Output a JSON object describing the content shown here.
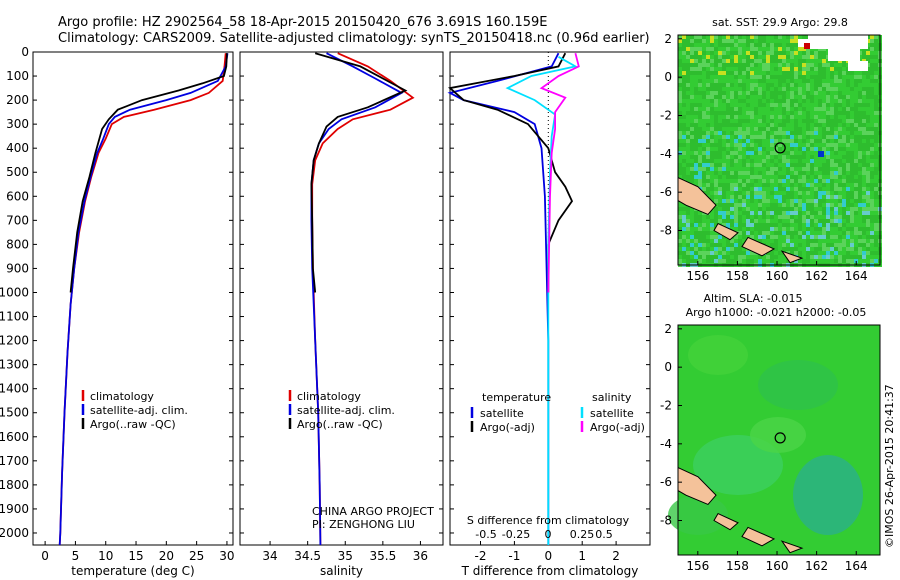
{
  "header": {
    "line1": "Argo profile: HZ 2902564_58 18-Apr-2015 20150420_676 3.691S 160.159E",
    "line2": "Climatology: CARS2009. Satellite-adjusted climatology: synTS_20150418.nc (0.96d earlier)"
  },
  "colors": {
    "climatology": "#e00000",
    "satellite": "#0000e0",
    "argo": "#000000",
    "sat_salinity": "#00e0ff",
    "argo_salinity": "#ff00ff",
    "land": "#f4c29a",
    "ocean": "#33cc33"
  },
  "chart_data": [
    {
      "type": "line",
      "panel": "temperature",
      "xlabel": "temperature (deg C)",
      "ylabel": "",
      "xlim": [
        -2,
        31
      ],
      "ylim": [
        2050,
        0
      ],
      "x_ticks": [
        0,
        5,
        10,
        15,
        20,
        25,
        30
      ],
      "x_tick_labels": [
        "0",
        "5",
        "10",
        "15",
        "20",
        "25",
        "30"
      ],
      "y_ticks": [
        0,
        100,
        200,
        300,
        400,
        500,
        600,
        700,
        800,
        900,
        1000,
        1100,
        1200,
        1300,
        1400,
        1500,
        1600,
        1700,
        1800,
        1900,
        2000
      ],
      "y_tick_labels": [
        "0",
        "100",
        "200",
        "300",
        "400",
        "500",
        "600",
        "700",
        "800",
        "900",
        "1000",
        "1100",
        "1200",
        "1300",
        "1400",
        "1500",
        "1600",
        "1700",
        "1800",
        "1900",
        "2000"
      ],
      "legend": [
        "climatology",
        "satellite-adj. clim.",
        "Argo(..raw -QC)"
      ],
      "series": [
        {
          "name": "climatology",
          "points": [
            [
              29.8,
              5
            ],
            [
              29.6,
              60
            ],
            [
              29.3,
              120
            ],
            [
              27,
              170
            ],
            [
              24,
              200
            ],
            [
              18,
              240
            ],
            [
              13,
              270
            ],
            [
              11,
              300
            ],
            [
              10,
              360
            ],
            [
              8.8,
              420
            ],
            [
              7.6,
              520
            ],
            [
              6.6,
              620
            ],
            [
              5.6,
              750
            ],
            [
              4.8,
              900
            ],
            [
              4.2,
              1050
            ],
            [
              3.7,
              1250
            ],
            [
              3.2,
              1500
            ],
            [
              2.8,
              1750
            ],
            [
              2.5,
              2000
            ],
            [
              2.4,
              2050
            ]
          ]
        },
        {
          "name": "satellite-adj. clim.",
          "points": [
            [
              30.1,
              5
            ],
            [
              29.8,
              60
            ],
            [
              28.5,
              120
            ],
            [
              24,
              170
            ],
            [
              20,
              200
            ],
            [
              14,
              240
            ],
            [
              11.5,
              270
            ],
            [
              10.5,
              300
            ],
            [
              9.6,
              360
            ],
            [
              8.6,
              420
            ],
            [
              7.5,
              520
            ],
            [
              6.5,
              620
            ],
            [
              5.5,
              750
            ],
            [
              4.8,
              900
            ],
            [
              4.2,
              1050
            ],
            [
              3.7,
              1250
            ],
            [
              3.2,
              1500
            ],
            [
              2.8,
              1750
            ],
            [
              2.5,
              2000
            ],
            [
              2.4,
              2050
            ]
          ]
        },
        {
          "name": "Argo(..raw -QC)",
          "points": [
            [
              30.0,
              5
            ],
            [
              29.9,
              60
            ],
            [
              29.5,
              100
            ],
            [
              26,
              130
            ],
            [
              22,
              160
            ],
            [
              16,
              200
            ],
            [
              12,
              240
            ],
            [
              10.5,
              280
            ],
            [
              9.4,
              320
            ],
            [
              8.3,
              420
            ],
            [
              7.3,
              520
            ],
            [
              6.2,
              620
            ],
            [
              5.3,
              750
            ],
            [
              4.6,
              900
            ],
            [
              4.2,
              1000
            ]
          ]
        }
      ]
    },
    {
      "type": "line",
      "panel": "salinity",
      "xlabel": "salinity",
      "xlim": [
        33.6,
        36.3
      ],
      "ylim": [
        2050,
        0
      ],
      "x_ticks": [
        34,
        34.5,
        35,
        35.5,
        36
      ],
      "x_tick_labels": [
        "34",
        "34.5",
        "35",
        "35.5",
        "36"
      ],
      "legend": [
        "climatology",
        "satellite-adj. clim.",
        "Argo(..raw -QC)"
      ],
      "annotation": [
        "CHINA ARGO PROJECT",
        "PI: ZENGHONG LIU"
      ],
      "series": [
        {
          "name": "climatology",
          "points": [
            [
              34.9,
              5
            ],
            [
              35.3,
              60
            ],
            [
              35.6,
              120
            ],
            [
              35.9,
              190
            ],
            [
              35.6,
              240
            ],
            [
              35.1,
              280
            ],
            [
              34.9,
              320
            ],
            [
              34.7,
              380
            ],
            [
              34.6,
              450
            ],
            [
              34.56,
              550
            ],
            [
              34.56,
              700
            ],
            [
              34.57,
              900
            ],
            [
              34.6,
              1200
            ],
            [
              34.64,
              1500
            ],
            [
              34.66,
              1800
            ],
            [
              34.67,
              2050
            ]
          ]
        },
        {
          "name": "satellite-adj. clim.",
          "points": [
            [
              34.75,
              5
            ],
            [
              35.1,
              60
            ],
            [
              35.4,
              110
            ],
            [
              35.75,
              170
            ],
            [
              35.4,
              230
            ],
            [
              34.95,
              280
            ],
            [
              34.78,
              320
            ],
            [
              34.65,
              380
            ],
            [
              34.58,
              450
            ],
            [
              34.55,
              550
            ],
            [
              34.55,
              700
            ],
            [
              34.56,
              900
            ],
            [
              34.6,
              1200
            ],
            [
              34.64,
              1500
            ],
            [
              34.66,
              1800
            ],
            [
              34.67,
              2050
            ]
          ]
        },
        {
          "name": "Argo(..raw -QC)",
          "points": [
            [
              34.6,
              5
            ],
            [
              35.2,
              60
            ],
            [
              35.5,
              110
            ],
            [
              35.8,
              160
            ],
            [
              35.3,
              230
            ],
            [
              34.9,
              270
            ],
            [
              34.75,
              310
            ],
            [
              34.65,
              380
            ],
            [
              34.58,
              450
            ],
            [
              34.55,
              550
            ],
            [
              34.56,
              700
            ],
            [
              34.57,
              900
            ],
            [
              34.6,
              1000
            ]
          ]
        }
      ]
    },
    {
      "type": "line",
      "panel": "difference",
      "xlabel": "T difference from climatology",
      "xlabel_top": "S difference from climatology",
      "xlim": [
        -2.9,
        3.0
      ],
      "ylim": [
        2050,
        0
      ],
      "x_ticks": [
        -2,
        -1,
        0,
        1,
        2
      ],
      "x_tick_labels": [
        "-2",
        "-1",
        "0",
        "1",
        "2"
      ],
      "s_ticks": [
        "-0.5",
        "-0.25",
        "0",
        "0.25",
        "0.5"
      ],
      "legend_groups": [
        {
          "heading": "temperature",
          "items": [
            "satellite",
            "Argo(-adj)"
          ]
        },
        {
          "heading": "salinity",
          "items": [
            "satellite",
            "Argo(-adj)"
          ]
        }
      ],
      "series": [
        {
          "name": "temperature satellite",
          "points": [
            [
              0.3,
              5
            ],
            [
              0.1,
              60
            ],
            [
              -1.5,
              120
            ],
            [
              -2.9,
              170
            ],
            [
              -2.5,
              200
            ],
            [
              -1,
              250
            ],
            [
              -0.4,
              300
            ],
            [
              -0.2,
              400
            ],
            [
              -0.1,
              600
            ],
            [
              -0.05,
              900
            ],
            [
              0,
              1200
            ],
            [
              0,
              1600
            ],
            [
              0,
              2050
            ]
          ]
        },
        {
          "name": "temperature Argo(-adj)",
          "points": [
            [
              0.5,
              5
            ],
            [
              0.3,
              60
            ],
            [
              -1,
              100
            ],
            [
              -2.9,
              150
            ],
            [
              -2.5,
              200
            ],
            [
              -1.5,
              240
            ],
            [
              -0.6,
              300
            ],
            [
              0,
              400
            ],
            [
              0.2,
              500
            ],
            [
              0.5,
              560
            ],
            [
              0.7,
              620
            ],
            [
              0.3,
              700
            ],
            [
              0,
              800
            ],
            [
              0,
              1000
            ]
          ]
        },
        {
          "name": "salinity satellite",
          "points": [
            [
              0.3,
              20
            ],
            [
              0.8,
              60
            ],
            [
              -0.5,
              100
            ],
            [
              -1.2,
              150
            ],
            [
              -0.4,
              200
            ],
            [
              0.2,
              260
            ],
            [
              0.1,
              350
            ],
            [
              0.05,
              500
            ],
            [
              0,
              800
            ],
            [
              0,
              1200
            ],
            [
              0,
              1700
            ],
            [
              0,
              2050
            ]
          ]
        },
        {
          "name": "salinity Argo(-adj)",
          "points": [
            [
              0.8,
              5
            ],
            [
              0.9,
              60
            ],
            [
              0.3,
              100
            ],
            [
              -0.2,
              150
            ],
            [
              0.5,
              190
            ],
            [
              0.2,
              250
            ],
            [
              0.2,
              320
            ],
            [
              0.1,
              420
            ],
            [
              0.05,
              600
            ],
            [
              0,
              1000
            ]
          ]
        }
      ]
    },
    {
      "type": "heatmap",
      "panel": "sst-map",
      "title": "sat. SST: 29.9  Argo: 29.8",
      "xlim": [
        155,
        165.2
      ],
      "ylim": [
        -9.8,
        2.2
      ],
      "x_ticks": [
        156,
        158,
        160,
        162,
        164
      ],
      "x_tick_labels": [
        "156",
        "158",
        "160",
        "162",
        "164"
      ],
      "y_ticks": [
        2,
        0,
        -2,
        -4,
        -6,
        -8
      ],
      "y_tick_labels": [
        "2",
        "0",
        "-2",
        "-4",
        "-6",
        "-8"
      ],
      "marker": [
        160.159,
        -3.691
      ]
    },
    {
      "type": "heatmap",
      "panel": "sla-map",
      "title_lines": [
        "Altim. SLA: -0.015",
        "Argo h1000: -0.021  h2000: -0.05"
      ],
      "xlim": [
        155,
        165.2
      ],
      "ylim": [
        -9.8,
        2.2
      ],
      "x_ticks": [
        156,
        158,
        160,
        162,
        164
      ],
      "x_tick_labels": [
        "156",
        "158",
        "160",
        "162",
        "164"
      ],
      "y_ticks": [
        2,
        0,
        -2,
        -4,
        -6,
        -8
      ],
      "y_tick_labels": [
        "2",
        "0",
        "-2",
        "-4",
        "-6",
        "-8"
      ],
      "marker": [
        160.159,
        -3.691
      ]
    }
  ],
  "credit": "©IMOS 26-Apr-2015 20:41:37"
}
